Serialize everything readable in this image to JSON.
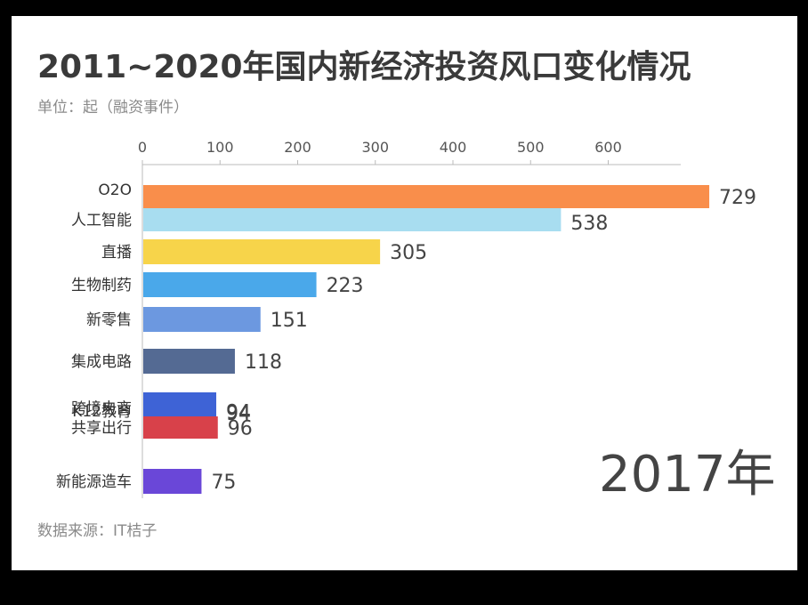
{
  "chart_data": {
    "type": "bar",
    "title": "2011~2020年国内新经济投资风口变化情况",
    "unit_label": "单位：起（融资事件）",
    "source_label": "数据来源：IT桔子",
    "year_label": "2017年",
    "x_ticks": [
      0,
      100,
      200,
      300,
      400,
      500,
      600
    ],
    "xlim": [
      0,
      690
    ],
    "grid": false,
    "bars": [
      {
        "category": "人工智能",
        "value": 538,
        "color": "#a8ddf0"
      },
      {
        "category": "O2O",
        "value": 729,
        "color": "#f98e4b"
      },
      {
        "category": "直播",
        "value": 305,
        "color": "#f7d44a"
      },
      {
        "category": "生物制药",
        "value": 223,
        "color": "#4aa8ea"
      },
      {
        "category": "新零售",
        "value": 151,
        "color": "#6c98e0"
      },
      {
        "category": "集成电路",
        "value": 118,
        "color": "#546a93"
      },
      {
        "category": "K12教育",
        "value": 94,
        "color": "#6fd3a8"
      },
      {
        "category": "共享出行",
        "value": 96,
        "color": "#d8414a"
      },
      {
        "category": "跨境电商",
        "value": 94,
        "color": "#3e63d6"
      },
      {
        "category": "新能源造车",
        "value": 75,
        "color": "#6a47d8"
      }
    ]
  }
}
